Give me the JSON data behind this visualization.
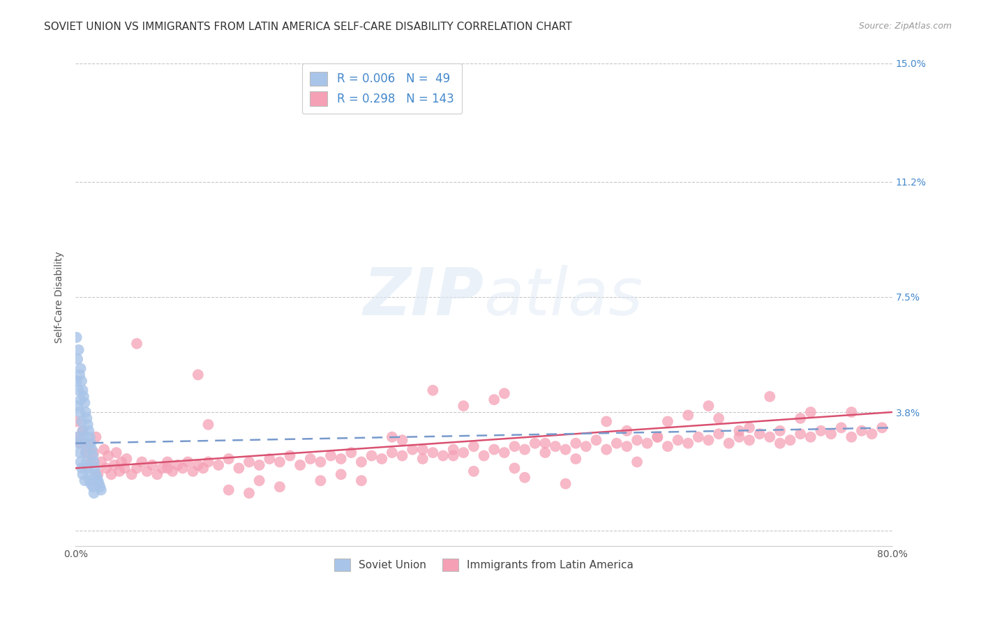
{
  "title": "SOVIET UNION VS IMMIGRANTS FROM LATIN AMERICA SELF-CARE DISABILITY CORRELATION CHART",
  "source": "Source: ZipAtlas.com",
  "ylabel": "Self-Care Disability",
  "xlim": [
    0.0,
    0.8
  ],
  "ylim": [
    -0.005,
    0.155
  ],
  "yticks": [
    0.0,
    0.038,
    0.075,
    0.112,
    0.15
  ],
  "ytick_labels": [
    "",
    "3.8%",
    "7.5%",
    "11.2%",
    "15.0%"
  ],
  "xticks": [
    0.0,
    0.2,
    0.4,
    0.6,
    0.8
  ],
  "xtick_labels": [
    "0.0%",
    "",
    "",
    "",
    "80.0%"
  ],
  "soviet_color": "#a8c4e8",
  "soviet_line_color": "#7799cc",
  "latin_color": "#f5a0b5",
  "latin_line_color": "#d95070",
  "watermark_text": "ZIPatlas",
  "background_color": "#ffffff",
  "grid_color": "#c8c8c8",
  "right_tick_color": "#4488cc",
  "title_fontsize": 11,
  "tick_fontsize": 10,
  "legend_fontsize": 11,
  "soviet_R": 0.006,
  "soviet_N": 49,
  "latin_R": 0.298,
  "latin_N": 143,
  "soviet_x": [
    0.001,
    0.001,
    0.002,
    0.002,
    0.002,
    0.003,
    0.003,
    0.003,
    0.004,
    0.004,
    0.004,
    0.005,
    0.005,
    0.005,
    0.006,
    0.006,
    0.006,
    0.007,
    0.007,
    0.007,
    0.008,
    0.008,
    0.009,
    0.009,
    0.009,
    0.01,
    0.01,
    0.011,
    0.011,
    0.012,
    0.012,
    0.013,
    0.013,
    0.014,
    0.014,
    0.015,
    0.015,
    0.016,
    0.017,
    0.017,
    0.018,
    0.018,
    0.019,
    0.02,
    0.021,
    0.022,
    0.023,
    0.024,
    0.025
  ],
  "soviet_y": [
    0.062,
    0.048,
    0.055,
    0.04,
    0.03,
    0.058,
    0.045,
    0.028,
    0.05,
    0.038,
    0.025,
    0.052,
    0.042,
    0.022,
    0.048,
    0.035,
    0.02,
    0.045,
    0.032,
    0.018,
    0.043,
    0.03,
    0.041,
    0.028,
    0.016,
    0.038,
    0.025,
    0.036,
    0.022,
    0.034,
    0.02,
    0.032,
    0.018,
    0.03,
    0.016,
    0.028,
    0.015,
    0.026,
    0.024,
    0.014,
    0.022,
    0.012,
    0.02,
    0.018,
    0.017,
    0.016,
    0.015,
    0.014,
    0.013
  ],
  "latin_x": [
    0.001,
    0.003,
    0.005,
    0.007,
    0.01,
    0.013,
    0.015,
    0.018,
    0.02,
    0.022,
    0.025,
    0.028,
    0.03,
    0.032,
    0.035,
    0.038,
    0.04,
    0.043,
    0.045,
    0.048,
    0.05,
    0.055,
    0.06,
    0.065,
    0.07,
    0.075,
    0.08,
    0.085,
    0.09,
    0.095,
    0.1,
    0.105,
    0.11,
    0.115,
    0.12,
    0.125,
    0.13,
    0.14,
    0.15,
    0.16,
    0.17,
    0.18,
    0.19,
    0.2,
    0.21,
    0.22,
    0.23,
    0.24,
    0.25,
    0.26,
    0.27,
    0.28,
    0.29,
    0.3,
    0.31,
    0.32,
    0.33,
    0.34,
    0.35,
    0.36,
    0.37,
    0.38,
    0.39,
    0.4,
    0.41,
    0.42,
    0.43,
    0.44,
    0.45,
    0.46,
    0.47,
    0.48,
    0.49,
    0.5,
    0.51,
    0.52,
    0.53,
    0.54,
    0.55,
    0.56,
    0.57,
    0.58,
    0.59,
    0.6,
    0.61,
    0.62,
    0.63,
    0.64,
    0.65,
    0.66,
    0.67,
    0.68,
    0.69,
    0.7,
    0.71,
    0.72,
    0.73,
    0.74,
    0.75,
    0.76,
    0.77,
    0.78,
    0.79,
    0.06,
    0.12,
    0.35,
    0.58,
    0.65,
    0.72,
    0.43,
    0.26,
    0.48,
    0.55,
    0.38,
    0.69,
    0.15,
    0.31,
    0.44,
    0.62,
    0.28,
    0.52,
    0.71,
    0.17,
    0.39,
    0.49,
    0.66,
    0.2,
    0.34,
    0.57,
    0.41,
    0.24,
    0.6,
    0.76,
    0.32,
    0.46,
    0.13,
    0.54,
    0.68,
    0.37,
    0.09,
    0.42,
    0.18,
    0.63
  ],
  "latin_y": [
    0.035,
    0.03,
    0.028,
    0.032,
    0.025,
    0.028,
    0.022,
    0.025,
    0.03,
    0.018,
    0.022,
    0.026,
    0.02,
    0.024,
    0.018,
    0.021,
    0.025,
    0.019,
    0.022,
    0.02,
    0.023,
    0.018,
    0.02,
    0.022,
    0.019,
    0.021,
    0.018,
    0.02,
    0.022,
    0.019,
    0.021,
    0.02,
    0.022,
    0.019,
    0.021,
    0.02,
    0.022,
    0.021,
    0.023,
    0.02,
    0.022,
    0.021,
    0.023,
    0.022,
    0.024,
    0.021,
    0.023,
    0.022,
    0.024,
    0.023,
    0.025,
    0.022,
    0.024,
    0.023,
    0.025,
    0.024,
    0.026,
    0.023,
    0.025,
    0.024,
    0.026,
    0.025,
    0.027,
    0.024,
    0.026,
    0.025,
    0.027,
    0.026,
    0.028,
    0.025,
    0.027,
    0.026,
    0.028,
    0.027,
    0.029,
    0.026,
    0.028,
    0.027,
    0.029,
    0.028,
    0.03,
    0.027,
    0.029,
    0.028,
    0.03,
    0.029,
    0.031,
    0.028,
    0.03,
    0.029,
    0.031,
    0.03,
    0.032,
    0.029,
    0.031,
    0.03,
    0.032,
    0.031,
    0.033,
    0.03,
    0.032,
    0.031,
    0.033,
    0.06,
    0.05,
    0.045,
    0.035,
    0.032,
    0.038,
    0.02,
    0.018,
    0.015,
    0.022,
    0.04,
    0.028,
    0.013,
    0.03,
    0.017,
    0.04,
    0.016,
    0.035,
    0.036,
    0.012,
    0.019,
    0.023,
    0.033,
    0.014,
    0.026,
    0.03,
    0.042,
    0.016,
    0.037,
    0.038,
    0.029,
    0.028,
    0.034,
    0.032,
    0.043,
    0.024,
    0.02,
    0.044,
    0.016,
    0.036
  ],
  "soviet_trend_x": [
    0.0,
    0.8
  ],
  "soviet_trend_y": [
    0.028,
    0.033
  ],
  "latin_trend_x": [
    0.0,
    0.8
  ],
  "latin_trend_y": [
    0.02,
    0.038
  ]
}
